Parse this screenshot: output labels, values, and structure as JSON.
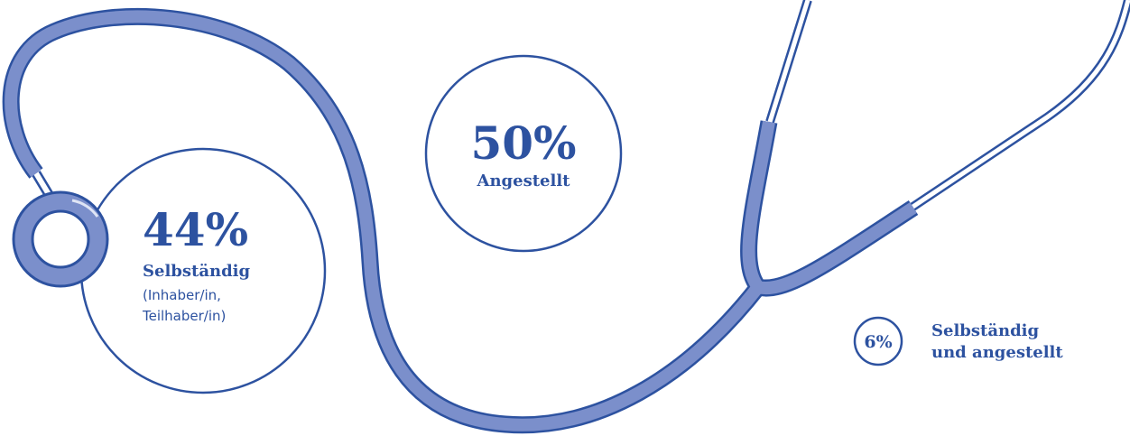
{
  "items": [
    {
      "percent": "44%",
      "label_lines": [
        "Selbständig"
      ],
      "note_lines": [
        "(Inhaber/in,",
        "Teilhaber/in)"
      ]
    },
    {
      "percent": "50%",
      "label_lines": [
        "Angestellt"
      ]
    },
    {
      "percent": "6%",
      "label_lines": [
        "Selbständig",
        "und angestellt"
      ]
    }
  ]
}
